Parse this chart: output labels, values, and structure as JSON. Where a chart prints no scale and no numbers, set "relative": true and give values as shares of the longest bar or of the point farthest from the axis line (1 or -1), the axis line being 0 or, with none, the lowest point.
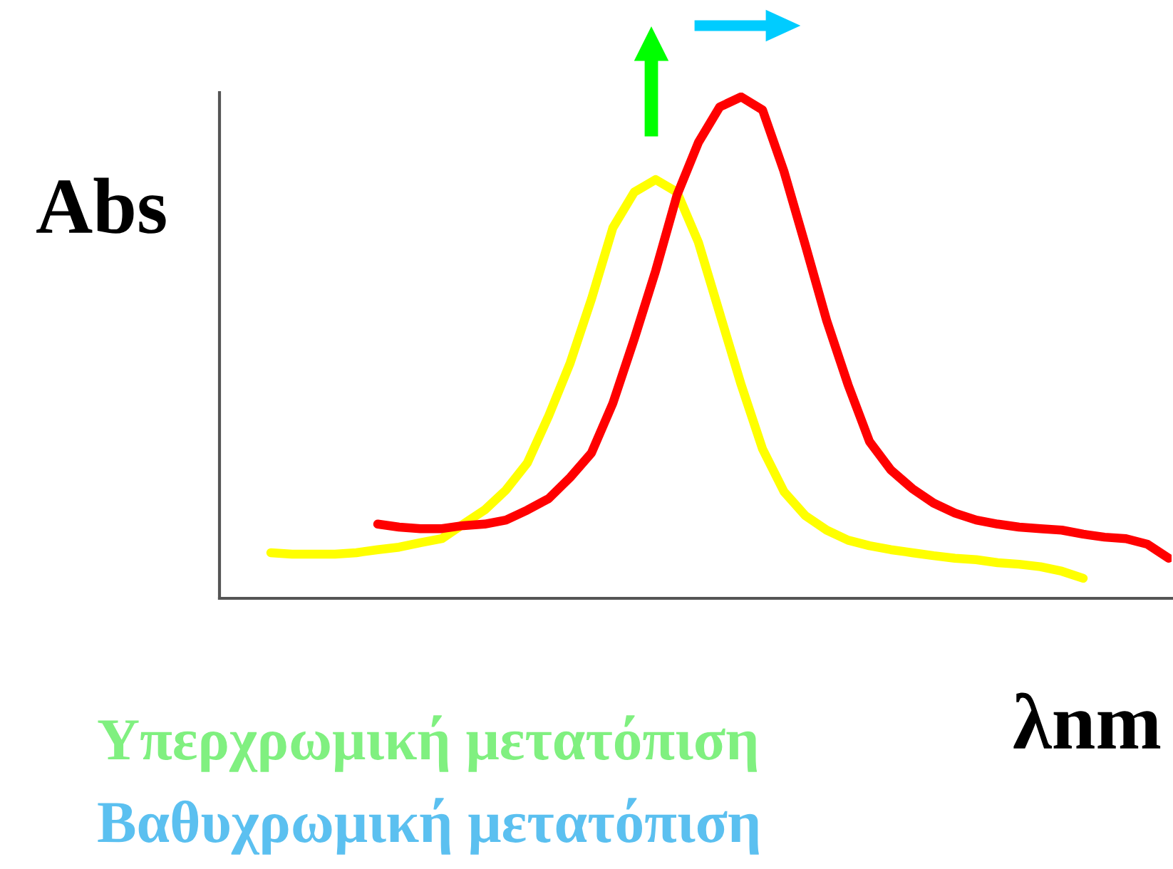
{
  "chart_data": {
    "type": "line",
    "relative": true,
    "grid": false,
    "marker": "none",
    "line_style": "solid",
    "xlabel": "λnm",
    "ylabel": "Abs",
    "annotations": [
      "Υπερχρωμική μετατόπιση",
      "Βαθυχρωμική μετατόπιση"
    ],
    "categories": [
      null,
      null,
      null,
      null,
      null,
      null,
      null,
      null,
      null,
      null,
      null,
      null,
      null,
      null,
      null,
      null,
      null,
      null,
      null,
      null,
      null,
      null,
      null,
      null,
      null,
      null,
      null,
      null,
      null,
      null,
      null,
      null,
      null,
      null,
      null,
      null,
      null,
      null,
      null,
      null,
      null,
      null,
      null
    ],
    "series": [
      {
        "color": "#ffff00",
        "values": [
          0.091,
          0.088,
          0.088,
          0.088,
          0.091,
          0.097,
          0.102,
          0.111,
          0.119,
          0.148,
          0.176,
          0.216,
          0.27,
          0.364,
          0.469,
          0.597,
          0.739,
          0.81,
          0.835,
          0.81,
          0.71,
          0.568,
          0.426,
          0.298,
          0.213,
          0.165,
          0.136,
          0.116,
          0.105,
          0.097,
          0.091,
          0.085,
          0.08,
          0.077,
          0.071,
          0.068,
          0.063,
          0.054,
          0.04,
          null,
          null,
          null,
          null
        ]
      },
      {
        "color": "#ff0000",
        "values": [
          null,
          null,
          null,
          null,
          null,
          0.148,
          0.142,
          0.139,
          0.139,
          0.145,
          0.148,
          0.156,
          0.176,
          0.199,
          0.241,
          0.29,
          0.389,
          0.517,
          0.653,
          0.804,
          0.909,
          0.98,
          1.0,
          0.974,
          0.852,
          0.705,
          0.554,
          0.426,
          0.313,
          0.256,
          0.219,
          0.19,
          0.17,
          0.156,
          0.148,
          0.142,
          0.139,
          0.136,
          0.128,
          0.122,
          0.119,
          0.108,
          0.08
        ]
      }
    ]
  }
}
